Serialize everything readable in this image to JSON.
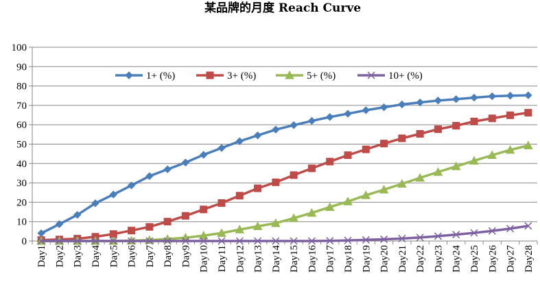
{
  "chart_data": {
    "type": "line",
    "title": "某品牌的月度 Reach Curve",
    "xlabel": "",
    "ylabel": "",
    "ylim": [
      0,
      100
    ],
    "yticks": [
      0,
      10,
      20,
      30,
      40,
      50,
      60,
      70,
      80,
      90,
      100
    ],
    "grid": true,
    "legend_position": "top",
    "categories": [
      "Day1",
      "Day2",
      "Day3",
      "Day4",
      "Day5",
      "Day6",
      "Day7",
      "Day8",
      "Day9",
      "Day10",
      "Day11",
      "Day12",
      "Day13",
      "Day14",
      "Day15",
      "Day16",
      "Day17",
      "Day18",
      "Day19",
      "Day20",
      "Day21",
      "Day22",
      "Day23",
      "Day24",
      "Day25",
      "Day26",
      "Day27",
      "Day28"
    ],
    "series": [
      {
        "name": "1+ (%)",
        "color": "#4a7ebb",
        "marker": "diamond",
        "values": [
          4,
          8.7,
          13.5,
          19.5,
          24,
          28.7,
          33.5,
          37,
          40.5,
          44.5,
          48,
          51.5,
          54.5,
          57.5,
          59.8,
          62,
          64,
          65.7,
          67.5,
          69,
          70.5,
          71.5,
          72.5,
          73.2,
          74,
          74.7,
          75,
          75.2
        ]
      },
      {
        "name": "3+ (%)",
        "color": "#be4b48",
        "marker": "square",
        "values": [
          0.5,
          0.8,
          1.2,
          2.2,
          3.6,
          5.4,
          7.3,
          10,
          13,
          16.3,
          19.6,
          23.4,
          27.2,
          30.3,
          34,
          37.5,
          41,
          44.3,
          47.3,
          50.3,
          53,
          55.3,
          57.7,
          59.5,
          61.7,
          63.3,
          64.9,
          66.2
        ]
      },
      {
        "name": "5+ (%)",
        "color": "#98b954",
        "marker": "triangle",
        "values": [
          0,
          0,
          0,
          0,
          0,
          0.2,
          0.5,
          1,
          1.7,
          2.8,
          4.1,
          5.9,
          7.6,
          9.2,
          11.8,
          14.5,
          17.5,
          20.4,
          23.6,
          26.5,
          29.5,
          32.6,
          35.6,
          38.5,
          41.4,
          44.3,
          47,
          49.3
        ]
      },
      {
        "name": "10+ (%)",
        "color": "#7d60a0",
        "marker": "x",
        "values": [
          0,
          0,
          0,
          0,
          0,
          0,
          0,
          0,
          0,
          0,
          0,
          0,
          0,
          0,
          0,
          0,
          0.1,
          0.3,
          0.6,
          0.9,
          1.3,
          1.8,
          2.5,
          3.3,
          4.2,
          5.2,
          6.4,
          7.8
        ]
      }
    ]
  }
}
